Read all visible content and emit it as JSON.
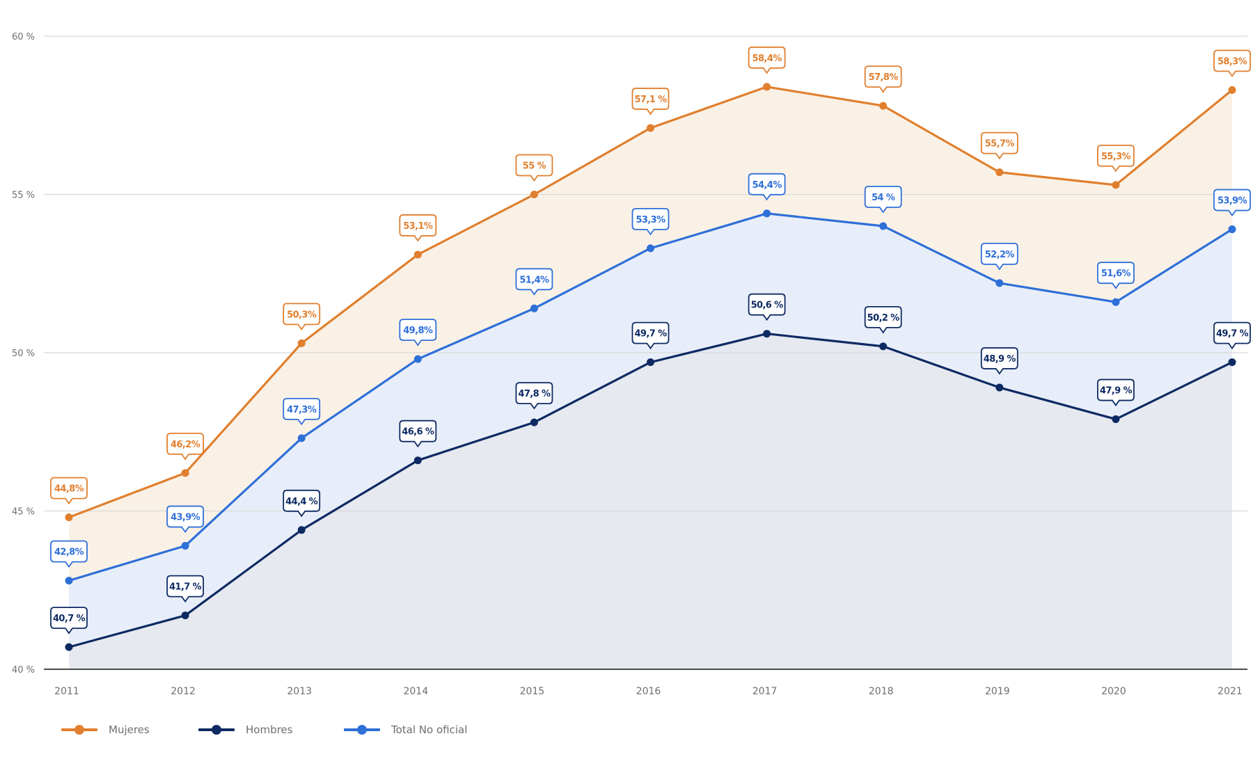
{
  "chart_data": {
    "type": "area",
    "title": "",
    "xlabel": "",
    "ylabel": "",
    "x": [
      "2011",
      "2012",
      "2013",
      "2014",
      "2015",
      "2016",
      "2017",
      "2018",
      "2019",
      "2020",
      "2021"
    ],
    "ylim": [
      40,
      60
    ],
    "yticks": [
      40,
      45,
      50,
      55,
      60
    ],
    "ytick_labels": [
      "40 %",
      "45 %",
      "50 %",
      "55 %",
      "60 %"
    ],
    "grid": true,
    "legend_position": "bottom-left",
    "series": [
      {
        "name": "Mujeres",
        "color": "#E07F2E",
        "fill": "#FAF1E6",
        "values": [
          44.8,
          46.2,
          50.3,
          53.1,
          55.0,
          57.1,
          58.4,
          57.8,
          55.7,
          55.3,
          58.3
        ],
        "labels": [
          "44,8%",
          "46,2%",
          "50,3%",
          "53,1%",
          "55 %",
          "57,1 %",
          "58,4%",
          "57,8%",
          "55,7%",
          "55,3%",
          "58,3%"
        ]
      },
      {
        "name": "Hombres",
        "color": "#0E2A63",
        "fill": "#E6E9EF",
        "values": [
          40.7,
          41.7,
          44.4,
          46.6,
          47.8,
          49.7,
          50.6,
          50.2,
          48.9,
          47.9,
          49.7
        ],
        "labels": [
          "40,7 %",
          "41,7 %",
          "44,4 %",
          "46,6 %",
          "47,8 %",
          "49,7 %",
          "50,6 %",
          "50,2 %",
          "48,9 %",
          "47,9 %",
          "49,7 %"
        ]
      },
      {
        "name": "Total No oficial",
        "color": "#2E6FD8",
        "fill": "#E8EEF9",
        "values": [
          42.8,
          43.9,
          47.3,
          49.8,
          51.4,
          53.3,
          54.4,
          54.0,
          52.2,
          51.6,
          53.9
        ],
        "labels": [
          "42,8%",
          "43,9%",
          "47,3%",
          "49,8%",
          "51,4%",
          "53,3%",
          "54,4%",
          "54 %",
          "52,2%",
          "51,6%",
          "53,9%"
        ]
      }
    ]
  },
  "legend": {
    "items": [
      {
        "label": "Mujeres",
        "color": "#E07F2E"
      },
      {
        "label": "Hombres",
        "color": "#0E2A63"
      },
      {
        "label": "Total No oficial",
        "color": "#2E6FD8"
      }
    ]
  },
  "colors": {
    "gridline": "#D8D8D8",
    "axis": "#4A4A4A",
    "tick_text": "#6E6E6E",
    "label_bg": "#FFFFFF"
  }
}
